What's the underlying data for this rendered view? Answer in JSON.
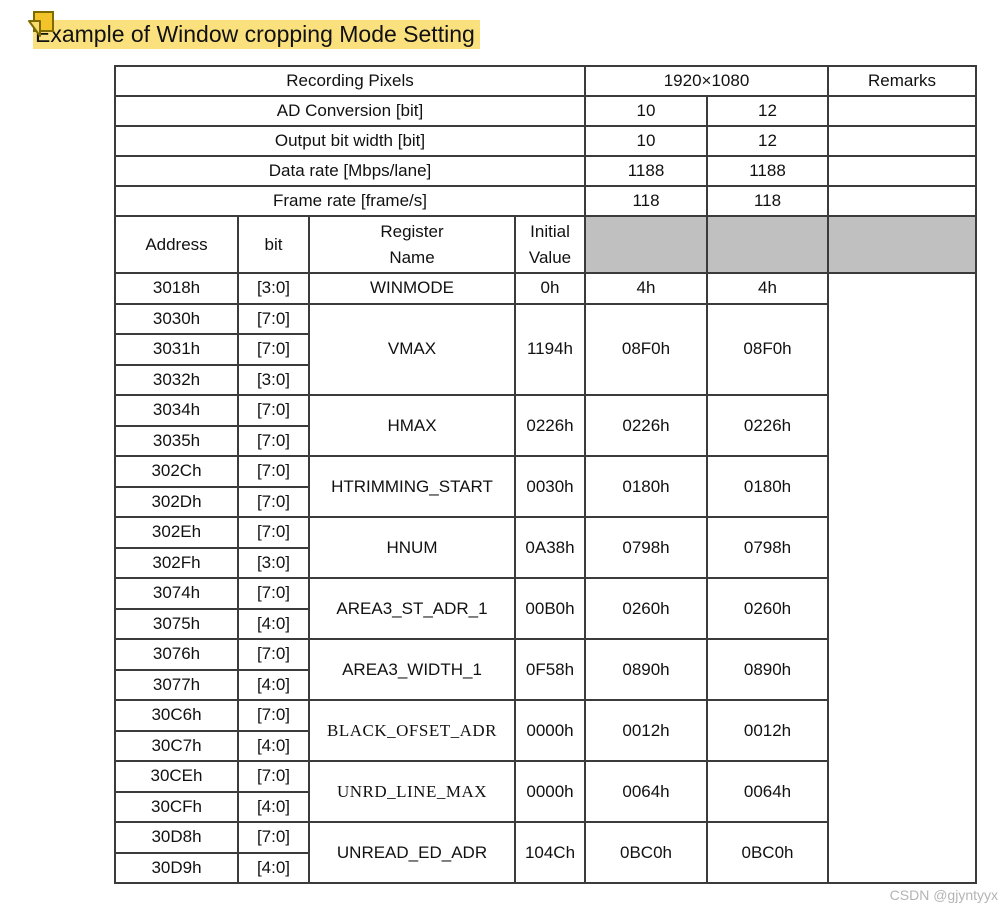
{
  "page": {
    "watermark": "CSDN @gjyntyyx",
    "background_color": "#ffffff"
  },
  "title": {
    "text": "Example of Window cropping Mode Setting",
    "highlight_color": "#FAE17E",
    "icon": "sticky-note-icon"
  },
  "colors": {
    "table_border": "#3b3b3b",
    "gray_cell": "#c0c0c0",
    "note_fill": "#F2C429",
    "note_fold_fill": "#F7DC74",
    "note_stroke": "#7d6b00",
    "watermark_color": "#b4b4b4"
  },
  "table": {
    "info_rows": [
      {
        "label": "Recording Pixels",
        "value_span": "1920×1080",
        "remarks": "Remarks"
      },
      {
        "label": "AD Conversion [bit]",
        "v10": "10",
        "v12": "12",
        "remarks": ""
      },
      {
        "label": "Output bit width [bit]",
        "v10": "10",
        "v12": "12",
        "remarks": ""
      },
      {
        "label": "Data rate [Mbps/lane]",
        "v10": "1188",
        "v12": "1188",
        "remarks": ""
      },
      {
        "label": "Frame rate [frame/s]",
        "v10": "118",
        "v12": "118",
        "remarks": ""
      }
    ],
    "header": {
      "address": "Address",
      "bit": "bit",
      "register_name": "Register\nName",
      "initial_value": "Initial\nValue"
    },
    "registers": [
      {
        "name": "WINMODE",
        "initial": "0h",
        "v10": "4h",
        "v12": "4h",
        "rows": [
          {
            "address": "3018h",
            "bit": "[3:0]"
          }
        ]
      },
      {
        "name": "VMAX",
        "initial": "1194h",
        "v10": "08F0h",
        "v12": "08F0h",
        "rows": [
          {
            "address": "3030h",
            "bit": "[7:0]"
          },
          {
            "address": "3031h",
            "bit": "[7:0]"
          },
          {
            "address": "3032h",
            "bit": "[3:0]"
          }
        ]
      },
      {
        "name": "HMAX",
        "initial": "0226h",
        "v10": "0226h",
        "v12": "0226h",
        "rows": [
          {
            "address": "3034h",
            "bit": "[7:0]"
          },
          {
            "address": "3035h",
            "bit": "[7:0]"
          }
        ]
      },
      {
        "name": "HTRIMMING_START",
        "initial": "0030h",
        "v10": "0180h",
        "v12": "0180h",
        "rows": [
          {
            "address": "302Ch",
            "bit": "[7:0]"
          },
          {
            "address": "302Dh",
            "bit": "[7:0]"
          }
        ]
      },
      {
        "name": "HNUM",
        "initial": "0A38h",
        "v10": "0798h",
        "v12": "0798h",
        "rows": [
          {
            "address": "302Eh",
            "bit": "[7:0]"
          },
          {
            "address": "302Fh",
            "bit": "[3:0]"
          }
        ]
      },
      {
        "name": "AREA3_ST_ADR_1",
        "initial": "00B0h",
        "v10": "0260h",
        "v12": "0260h",
        "rows": [
          {
            "address": "3074h",
            "bit": "[7:0]"
          },
          {
            "address": "3075h",
            "bit": "[4:0]"
          }
        ]
      },
      {
        "name": "AREA3_WIDTH_1",
        "initial": "0F58h",
        "v10": "0890h",
        "v12": "0890h",
        "rows": [
          {
            "address": "3076h",
            "bit": "[7:0]"
          },
          {
            "address": "3077h",
            "bit": "[4:0]"
          }
        ]
      },
      {
        "name": "BLACK_OFSET_ADR",
        "serif": true,
        "initial": "0000h",
        "v10": "0012h",
        "v12": "0012h",
        "rows": [
          {
            "address": "30C6h",
            "bit": "[7:0]"
          },
          {
            "address": "30C7h",
            "bit": "[4:0]"
          }
        ]
      },
      {
        "name": "UNRD_LINE_MAX",
        "serif": true,
        "initial": "0000h",
        "v10": "0064h",
        "v12": "0064h",
        "rows": [
          {
            "address": "30CEh",
            "bit": "[7:0]"
          },
          {
            "address": "30CFh",
            "bit": "[4:0]"
          }
        ]
      },
      {
        "name": "UNREAD_ED_ADR",
        "initial": "104Ch",
        "v10": "0BC0h",
        "v12": "0BC0h",
        "rows": [
          {
            "address": "30D8h",
            "bit": "[7:0]"
          },
          {
            "address": "30D9h",
            "bit": "[4:0]"
          }
        ]
      }
    ]
  }
}
